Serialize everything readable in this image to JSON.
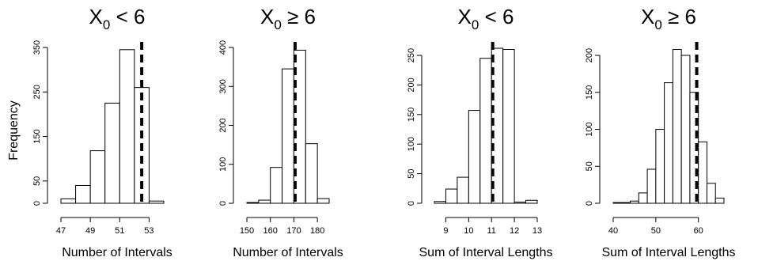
{
  "figure": {
    "ylabel": "Frequency"
  },
  "chart_data": [
    {
      "type": "bar",
      "title": "X_0 < 6",
      "title_base": "X",
      "title_sub": "0",
      "title_rel": " < 6",
      "xlabel": "Number of Intervals",
      "ylabel": "Frequency",
      "bin_edges": [
        47,
        48,
        49,
        50,
        51,
        52,
        53,
        54
      ],
      "values": [
        10,
        40,
        118,
        225,
        345,
        260,
        5
      ],
      "xlim": [
        47,
        54
      ],
      "ylim": [
        0,
        350
      ],
      "xticks": [
        47,
        49,
        51,
        53
      ],
      "yticks": [
        0,
        50,
        150,
        250,
        350
      ],
      "vline": 52.5
    },
    {
      "type": "bar",
      "title": "X_0 ≥ 6",
      "title_base": "X",
      "title_sub": "0",
      "title_rel": " ≥ 6",
      "xlabel": "Number of Intervals",
      "ylabel": "",
      "bin_edges": [
        150,
        155,
        160,
        165,
        170,
        175,
        180,
        185
      ],
      "values": [
        2,
        8,
        92,
        345,
        393,
        153,
        12
      ],
      "xlim": [
        150,
        185
      ],
      "ylim": [
        0,
        400
      ],
      "xticks": [
        150,
        160,
        170,
        180
      ],
      "yticks": [
        0,
        100,
        200,
        300,
        400
      ],
      "vline": 170.5
    },
    {
      "type": "bar",
      "title": "X_0 < 6",
      "title_base": "X",
      "title_sub": "0",
      "title_rel": " < 6",
      "xlabel": "Sum of Interval Lengths",
      "ylabel": "",
      "bin_edges": [
        8.5,
        9,
        9.5,
        10,
        10.5,
        11,
        11.5,
        12,
        12.5,
        13
      ],
      "values": [
        3,
        24,
        44,
        157,
        245,
        262,
        260,
        2,
        5
      ],
      "xlim": [
        8.5,
        13
      ],
      "ylim": [
        0,
        250
      ],
      "xticks": [
        9,
        10,
        11,
        12,
        13
      ],
      "yticks": [
        0,
        50,
        100,
        150,
        200,
        250
      ],
      "vline": 11.05
    },
    {
      "type": "bar",
      "title": "X_0 ≥ 6",
      "title_base": "X",
      "title_sub": "0",
      "title_rel": " ≥ 6",
      "xlabel": "Sum of Interval Lengths",
      "ylabel": "",
      "bin_edges": [
        40,
        42,
        44,
        46,
        48,
        50,
        52,
        54,
        56,
        58,
        60,
        62,
        64,
        66
      ],
      "values": [
        1,
        1,
        3,
        14,
        46,
        100,
        163,
        208,
        200,
        150,
        83,
        27,
        7
      ],
      "xlim": [
        40,
        66
      ],
      "ylim": [
        0,
        200
      ],
      "xticks": [
        40,
        50,
        60
      ],
      "yticks": [
        0,
        50,
        100,
        150,
        200
      ],
      "vline": 59.6
    }
  ]
}
